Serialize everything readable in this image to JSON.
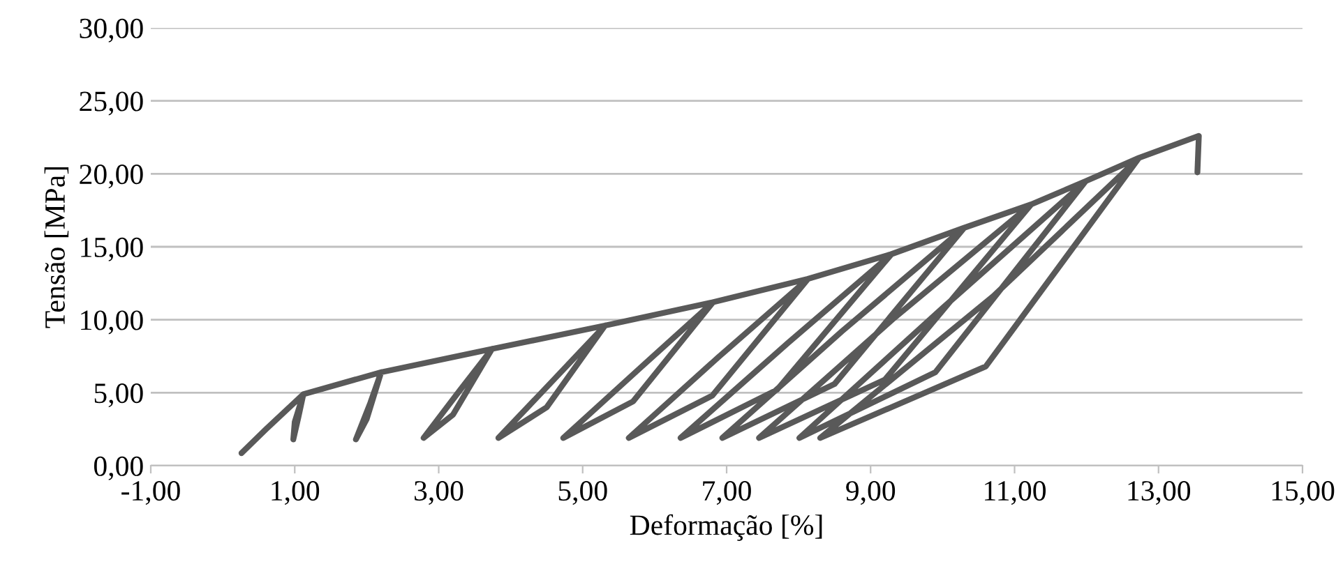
{
  "chart_data": {
    "type": "line",
    "xlabel": "Deformação [%]",
    "ylabel": "Tensão [MPa]",
    "series": [
      {
        "color": "#595959",
        "x": [
          0.26,
          0.6,
          1.12,
          1.0,
          0.98,
          1.05,
          1.12,
          2.2,
          2.0,
          1.85,
          2.05,
          2.2,
          3.74,
          3.2,
          2.79,
          3.3,
          3.74,
          5.31,
          4.5,
          3.83,
          4.6,
          5.31,
          6.81,
          5.7,
          4.73,
          5.8,
          6.81,
          8.13,
          6.8,
          5.64,
          6.9,
          8.13,
          9.29,
          7.7,
          6.36,
          7.85,
          9.29,
          10.3,
          8.5,
          6.94,
          8.6,
          10.3,
          11.23,
          9.2,
          7.45,
          9.3,
          11.23,
          11.99,
          9.9,
          8.01,
          10.0,
          11.99,
          12.73,
          10.6,
          8.3,
          10.7,
          12.73,
          13.56,
          13.54
        ],
        "values": [
          0.86,
          2.5,
          4.9,
          3.0,
          1.8,
          3.3,
          4.9,
          6.4,
          3.2,
          1.8,
          4.3,
          6.4,
          8.0,
          3.5,
          1.9,
          5.2,
          8.0,
          9.6,
          4.0,
          1.9,
          5.9,
          9.6,
          11.2,
          4.4,
          1.9,
          6.7,
          11.2,
          12.8,
          4.8,
          1.9,
          7.5,
          12.8,
          14.5,
          5.2,
          1.9,
          8.4,
          14.5,
          16.3,
          5.6,
          1.9,
          9.2,
          16.3,
          17.9,
          5.9,
          1.9,
          10.0,
          17.9,
          19.5,
          6.4,
          1.9,
          10.8,
          19.5,
          21.1,
          6.8,
          1.9,
          11.6,
          21.1,
          22.6,
          20.1
        ]
      }
    ],
    "xlim": [
      -1,
      15
    ],
    "ylim": [
      0,
      30
    ],
    "xticks": [
      {
        "value": -1,
        "label": "-1,00"
      },
      {
        "value": 1,
        "label": "1,00"
      },
      {
        "value": 3,
        "label": "3,00"
      },
      {
        "value": 5,
        "label": "5,00"
      },
      {
        "value": 7,
        "label": "7,00"
      },
      {
        "value": 9,
        "label": "9,00"
      },
      {
        "value": 11,
        "label": "11,00"
      },
      {
        "value": 13,
        "label": "13,00"
      },
      {
        "value": 15,
        "label": "15,00"
      }
    ],
    "yticks": [
      {
        "value": 0,
        "label": "0,00"
      },
      {
        "value": 5,
        "label": "5,00"
      },
      {
        "value": 10,
        "label": "10,00"
      },
      {
        "value": 15,
        "label": "15,00"
      },
      {
        "value": 20,
        "label": "20,00"
      },
      {
        "value": 25,
        "label": "25,00"
      },
      {
        "value": 30,
        "label": "30,00"
      }
    ],
    "grid": "y",
    "marker": "none",
    "line_style": "solid",
    "legend": false
  }
}
